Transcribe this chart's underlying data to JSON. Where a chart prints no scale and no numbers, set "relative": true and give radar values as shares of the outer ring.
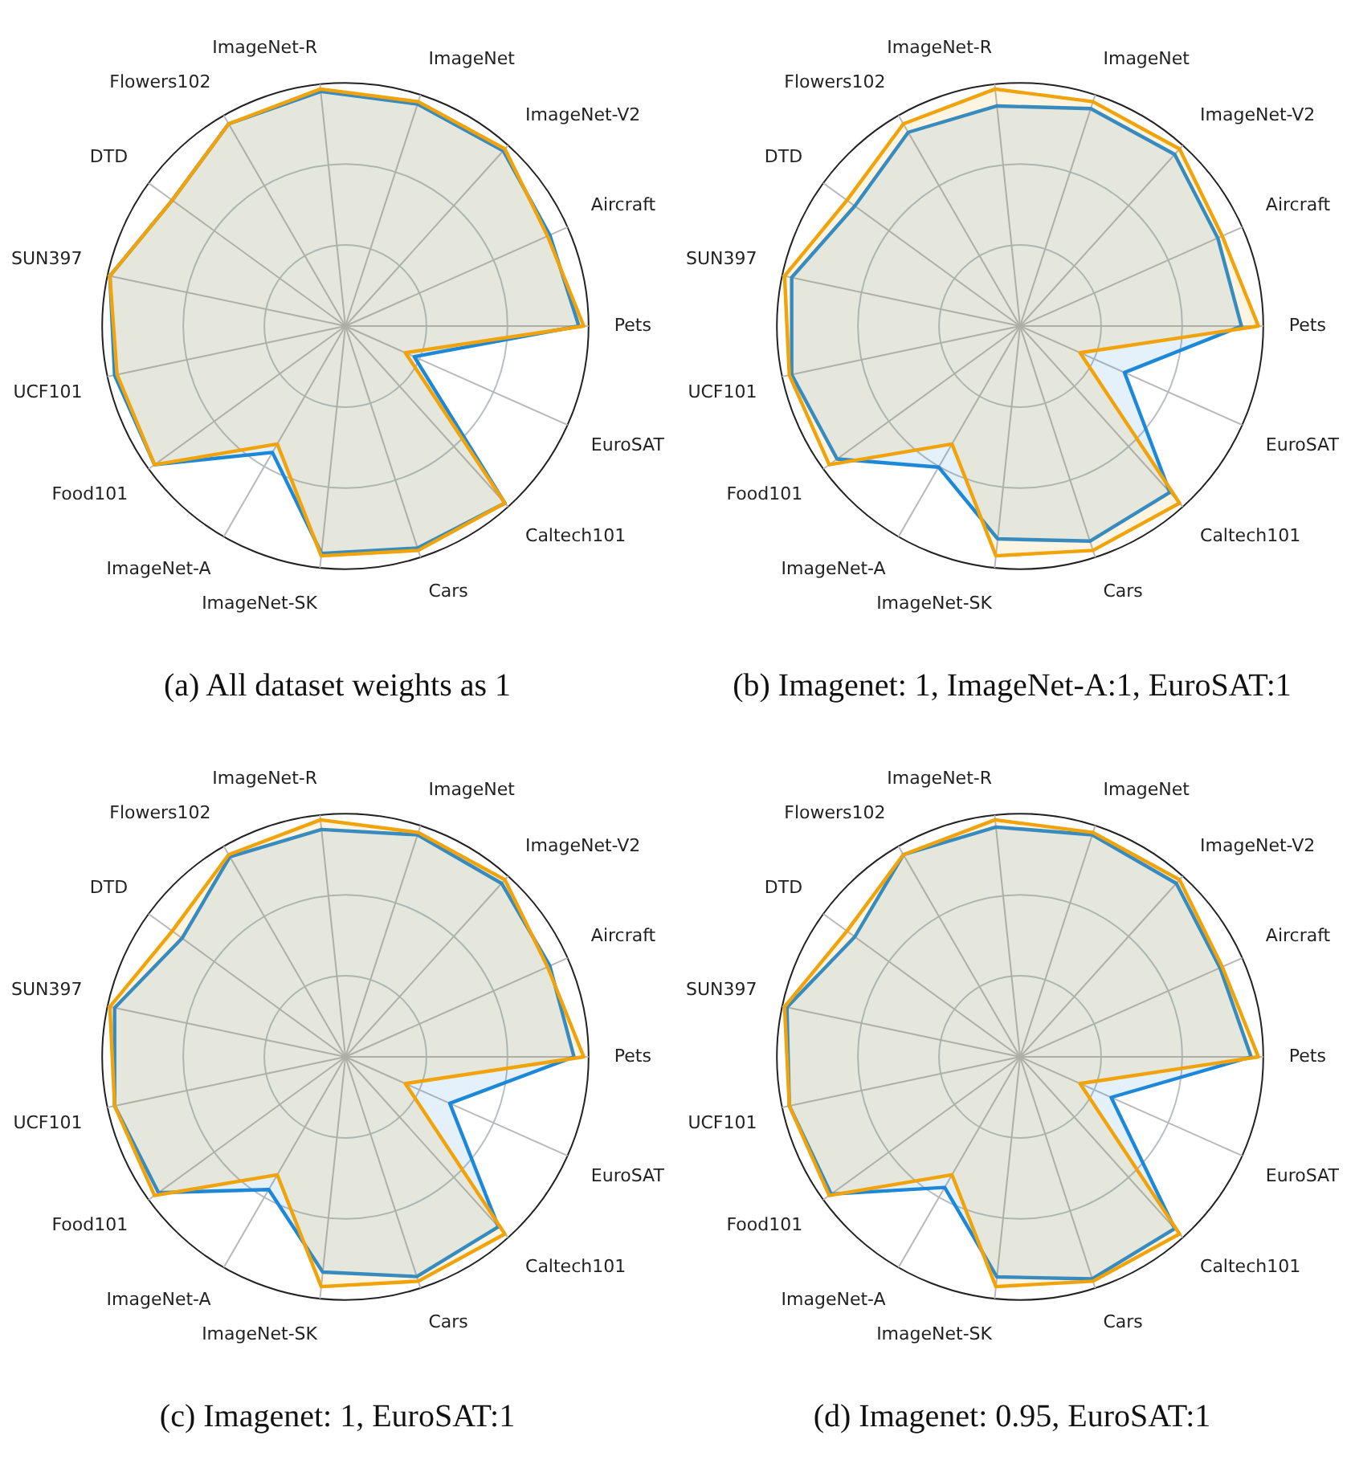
{
  "chart_data": [
    {
      "type": "radar",
      "title": "(a) All dataset weights as 1",
      "relative": true,
      "grid": true,
      "marker": "none",
      "categories": [
        "ImageNet-R",
        "ImageNet",
        "ImageNet-V2",
        "Aircraft",
        "Pets",
        "EuroSAT",
        "Caltech101",
        "Cars",
        "ImageNet-SK",
        "ImageNet-A",
        "Food101",
        "UCF101",
        "SUN397",
        "DTD",
        "Flowers102"
      ],
      "series": [
        {
          "color": "#f0a30a",
          "values": [
            0.98,
            0.97,
            0.98,
            0.91,
            0.98,
            0.27,
            0.98,
            0.97,
            0.95,
            0.56,
            0.97,
            0.96,
            0.99,
            0.88,
            0.96
          ]
        },
        {
          "color": "#1e88d8",
          "values": [
            0.97,
            0.96,
            0.97,
            0.92,
            0.96,
            0.31,
            0.98,
            0.96,
            0.94,
            0.6,
            0.97,
            0.97,
            0.99,
            0.88,
            0.96
          ]
        }
      ]
    },
    {
      "type": "radar",
      "title": "(b) Imagenet: 1, ImageNet-A:1, EuroSAT:1",
      "relative": true,
      "grid": true,
      "marker": "none",
      "categories": [
        "ImageNet-R",
        "ImageNet",
        "ImageNet-V2",
        "Aircraft",
        "Pets",
        "EuroSAT",
        "Caltech101",
        "Cars",
        "ImageNet-SK",
        "ImageNet-A",
        "Food101",
        "UCF101",
        "SUN397",
        "DTD",
        "Flowers102"
      ],
      "series": [
        {
          "color": "#f0a30a",
          "values": [
            0.98,
            0.97,
            0.98,
            0.91,
            0.98,
            0.27,
            0.98,
            0.97,
            0.95,
            0.56,
            0.97,
            0.97,
            0.99,
            0.88,
            0.96
          ]
        },
        {
          "color": "#1e88d8",
          "values": [
            0.91,
            0.94,
            0.95,
            0.89,
            0.91,
            0.47,
            0.92,
            0.93,
            0.88,
            0.67,
            0.93,
            0.96,
            0.96,
            0.84,
            0.92
          ]
        }
      ]
    },
    {
      "type": "radar",
      "title": "(c) Imagenet: 1, EuroSAT:1",
      "relative": true,
      "grid": true,
      "marker": "none",
      "categories": [
        "ImageNet-R",
        "ImageNet",
        "ImageNet-V2",
        "Aircraft",
        "Pets",
        "EuroSAT",
        "Caltech101",
        "Cars",
        "ImageNet-SK",
        "ImageNet-A",
        "Food101",
        "UCF101",
        "SUN397",
        "DTD",
        "Flowers102"
      ],
      "series": [
        {
          "color": "#f0a30a",
          "values": [
            0.98,
            0.97,
            0.98,
            0.91,
            0.98,
            0.27,
            0.98,
            0.97,
            0.95,
            0.56,
            0.97,
            0.97,
            0.99,
            0.88,
            0.96
          ]
        },
        {
          "color": "#1e88d8",
          "values": [
            0.94,
            0.96,
            0.96,
            0.92,
            0.94,
            0.47,
            0.94,
            0.95,
            0.89,
            0.63,
            0.95,
            0.97,
            0.97,
            0.83,
            0.95
          ]
        }
      ]
    },
    {
      "type": "radar",
      "title": "(d) Imagenet: 0.95, EuroSAT:1",
      "relative": true,
      "grid": true,
      "marker": "none",
      "categories": [
        "ImageNet-R",
        "ImageNet",
        "ImageNet-V2",
        "Aircraft",
        "Pets",
        "EuroSAT",
        "Caltech101",
        "Cars",
        "ImageNet-SK",
        "ImageNet-A",
        "Food101",
        "UCF101",
        "SUN397",
        "DTD",
        "Flowers102"
      ],
      "series": [
        {
          "color": "#f0a30a",
          "values": [
            0.98,
            0.97,
            0.98,
            0.91,
            0.98,
            0.27,
            0.98,
            0.97,
            0.95,
            0.56,
            0.97,
            0.97,
            0.99,
            0.88,
            0.96
          ]
        },
        {
          "color": "#1e88d8",
          "values": [
            0.95,
            0.96,
            0.96,
            0.9,
            0.95,
            0.41,
            0.95,
            0.96,
            0.91,
            0.62,
            0.96,
            0.97,
            0.98,
            0.84,
            0.96
          ]
        }
      ]
    }
  ]
}
